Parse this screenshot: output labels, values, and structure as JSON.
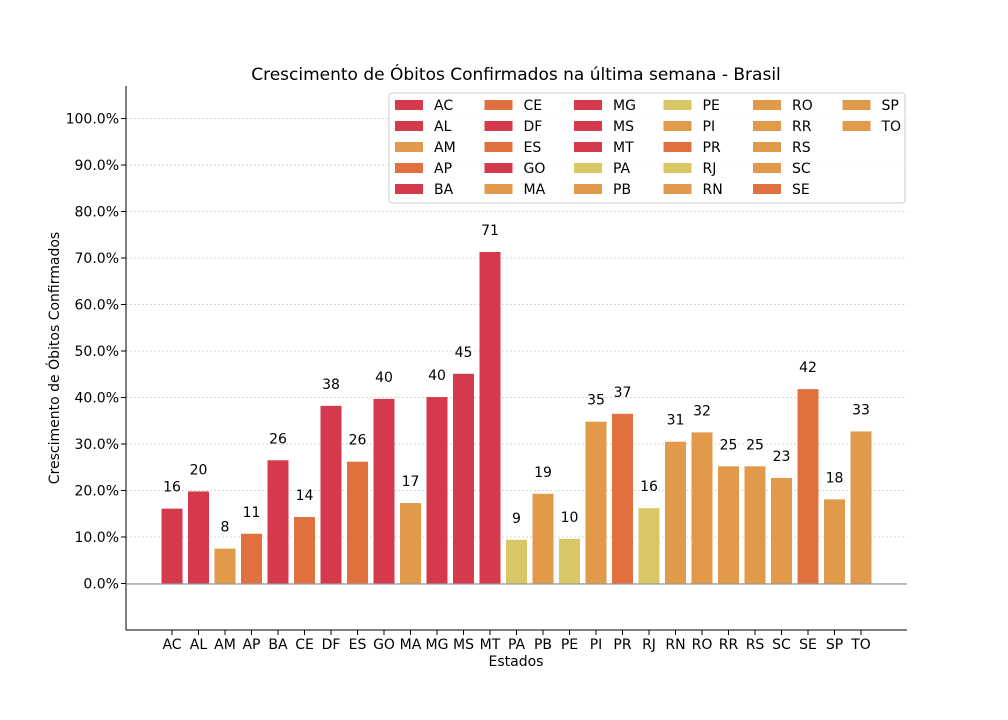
{
  "chart_data": {
    "type": "bar",
    "title": "Crescimento de Óbitos Confirmados na última semana - Brasil",
    "xlabel": "Estados",
    "ylabel": "Crescimento de Óbitos Confirmados",
    "ylim": [
      -0.1,
      1.07
    ],
    "yticks": [
      0.0,
      0.1,
      0.2,
      0.3,
      0.4,
      0.5,
      0.6,
      0.7,
      0.8,
      0.9,
      1.0
    ],
    "ytick_labels": [
      "0.0%",
      "10.0%",
      "20.0%",
      "30.0%",
      "40.0%",
      "50.0%",
      "60.0%",
      "70.0%",
      "80.0%",
      "90.0%",
      "100.0%"
    ],
    "grid": "horizontal dashed",
    "legend_position": "top-right",
    "legend_columns": 6,
    "categories": [
      "AC",
      "AL",
      "AM",
      "AP",
      "BA",
      "CE",
      "DF",
      "ES",
      "GO",
      "MA",
      "MG",
      "MS",
      "MT",
      "PA",
      "PB",
      "PE",
      "PI",
      "PR",
      "RJ",
      "RN",
      "RO",
      "RR",
      "RS",
      "SC",
      "SE",
      "SP",
      "TO"
    ],
    "values": [
      0.161,
      0.198,
      0.075,
      0.107,
      0.265,
      0.143,
      0.382,
      0.262,
      0.397,
      0.173,
      0.401,
      0.451,
      0.713,
      0.094,
      0.193,
      0.096,
      0.348,
      0.365,
      0.162,
      0.305,
      0.325,
      0.252,
      0.252,
      0.227,
      0.418,
      0.181,
      0.327
    ],
    "data_labels": [
      "16",
      "20",
      "8",
      "11",
      "26",
      "14",
      "38",
      "26",
      "40",
      "17",
      "40",
      "45",
      "71",
      "9",
      "19",
      "10",
      "35",
      "37",
      "16",
      "31",
      "32",
      "25",
      "25",
      "23",
      "42",
      "18",
      "33"
    ],
    "colors": [
      "#d43a4c",
      "#d43a4c",
      "#e09a4a",
      "#e0703e",
      "#d43a4c",
      "#e0703e",
      "#d43a4c",
      "#e0703e",
      "#d43a4c",
      "#e09a4a",
      "#d43a4c",
      "#d43a4c",
      "#d43a4c",
      "#d9c765",
      "#e09a4a",
      "#d9c765",
      "#e09a4a",
      "#e0703e",
      "#d9c765",
      "#e09a4a",
      "#e09a4a",
      "#e09a4a",
      "#e09a4a",
      "#e09a4a",
      "#e0703e",
      "#e09a4a",
      "#e09a4a"
    ]
  }
}
